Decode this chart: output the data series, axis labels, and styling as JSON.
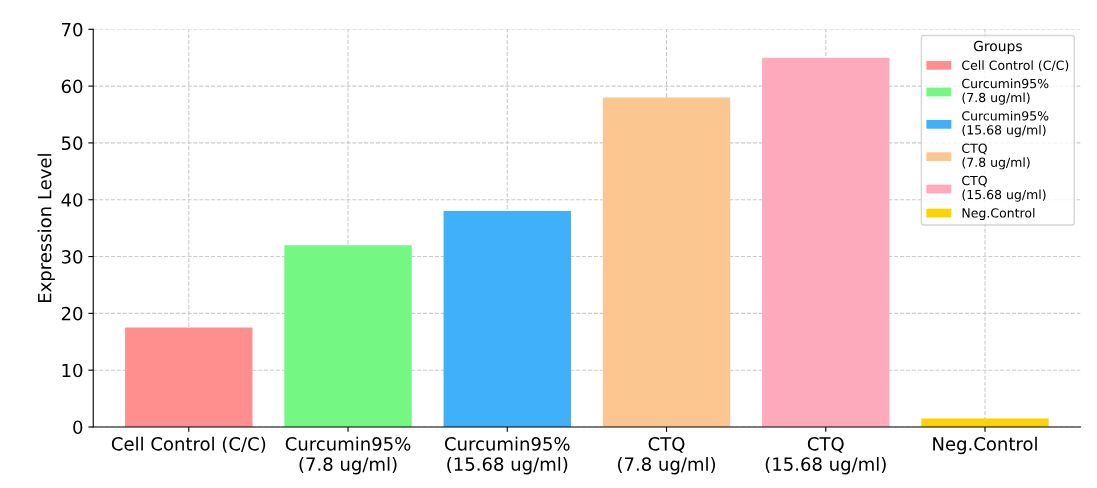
{
  "chart_data": {
    "type": "bar",
    "ylabel": "Expression Level",
    "legend_title": "Groups",
    "categories": [
      "Cell Control (C/C)",
      "Curcumin95%\n(7.8 ug/ml)",
      "Curcumin95%\n(15.68 ug/ml)",
      "CTQ\n(7.8 ug/ml)",
      "CTQ\n(15.68 ug/ml)",
      "Neg.Control"
    ],
    "series": [
      {
        "name": "Cell Control (C/C)",
        "color": "#ff8f8f",
        "values": [
          17.5,
          null,
          null,
          null,
          null,
          null
        ]
      },
      {
        "name": "Curcumin95%\n(7.8 ug/ml)",
        "color": "#74f883",
        "values": [
          null,
          32,
          null,
          null,
          null,
          null
        ]
      },
      {
        "name": "Curcumin95%\n(15.68 ug/ml)",
        "color": "#41b0fb",
        "values": [
          null,
          null,
          38,
          null,
          null,
          null
        ]
      },
      {
        "name": "CTQ\n(7.8 ug/ml)",
        "color": "#fbc68f",
        "values": [
          null,
          null,
          null,
          58,
          null,
          null
        ]
      },
      {
        "name": "CTQ\n(15.68 ug/ml)",
        "color": "#fdaabd",
        "values": [
          null,
          null,
          null,
          null,
          65,
          null
        ]
      },
      {
        "name": "Neg.Control",
        "color": "#fcd404",
        "values": [
          null,
          null,
          null,
          null,
          null,
          1.5
        ]
      }
    ],
    "ylim": [
      0,
      70
    ],
    "yticks": [
      0,
      10,
      20,
      30,
      40,
      50,
      60,
      70
    ],
    "grid": true,
    "legend": "top right"
  }
}
